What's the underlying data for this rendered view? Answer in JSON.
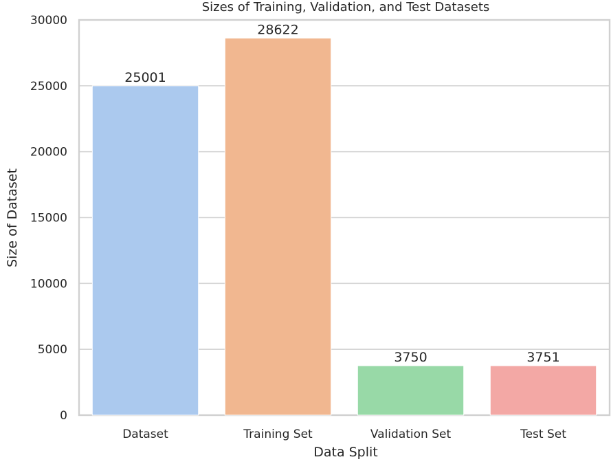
{
  "chart_data": {
    "type": "bar",
    "title": "Sizes of Training, Validation, and Test Datasets",
    "xlabel": "Data Split",
    "ylabel": "Size of Dataset",
    "categories": [
      "Dataset",
      "Training Set",
      "Validation Set",
      "Test Set"
    ],
    "values": [
      25001,
      28622,
      3750,
      3751
    ],
    "data_labels": [
      "25001",
      "28622",
      "3750",
      "3751"
    ],
    "colors": [
      "#abc9ee",
      "#f1b790",
      "#98d9a7",
      "#f3a8a5"
    ],
    "ylim": [
      0,
      30000
    ],
    "yticks": [
      0,
      5000,
      10000,
      15000,
      20000,
      25000,
      30000
    ],
    "ytick_labels": [
      "0",
      "5000",
      "10000",
      "15000",
      "20000",
      "25000",
      "30000"
    ],
    "grid": "horizontal",
    "legend": "none"
  }
}
